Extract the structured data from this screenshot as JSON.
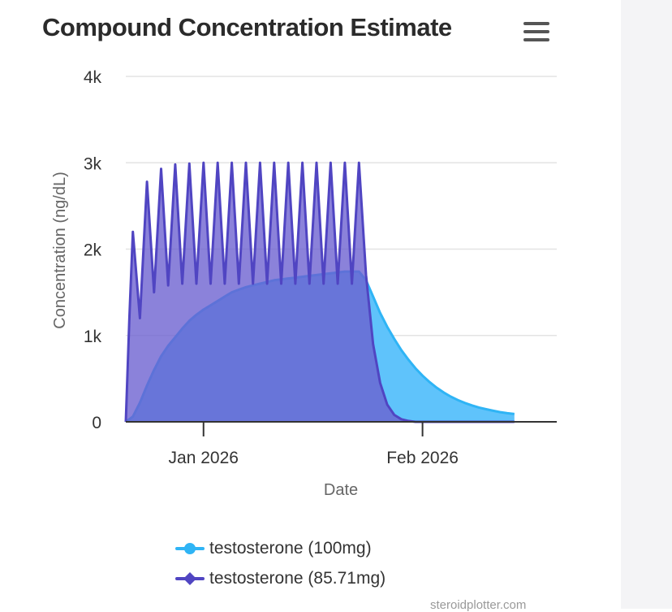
{
  "title": "Compound Concentration Estimate",
  "menu_icon": "hamburger-menu-icon",
  "credit": "steroidplotter.com",
  "chart_data": {
    "type": "area",
    "title": "Compound Concentration Estimate",
    "xlabel": "Date",
    "ylabel": "Concentration (ng/dL)",
    "x_ticks": [
      {
        "value": "2026-01-01",
        "label": "Jan 2026"
      },
      {
        "value": "2026-02-01",
        "label": "Feb 2026"
      }
    ],
    "xlim": [
      "2025-12-21",
      "2026-02-20"
    ],
    "ylim": [
      0,
      4000
    ],
    "y_ticks": [
      {
        "value": 0,
        "label": "0"
      },
      {
        "value": 1000,
        "label": "1k"
      },
      {
        "value": 2000,
        "label": "2k"
      },
      {
        "value": 3000,
        "label": "3k"
      },
      {
        "value": 4000,
        "label": "4k"
      }
    ],
    "grid": true,
    "legend_position": "bottom",
    "series": [
      {
        "name": "testosterone (100mg)",
        "color": "#2fb4f5",
        "fill": "#5fc3fb",
        "points": [
          [
            "2025-12-21",
            0
          ],
          [
            "2025-12-22",
            60
          ],
          [
            "2025-12-23",
            220
          ],
          [
            "2025-12-24",
            420
          ],
          [
            "2025-12-25",
            600
          ],
          [
            "2025-12-26",
            760
          ],
          [
            "2025-12-27",
            880
          ],
          [
            "2025-12-28",
            980
          ],
          [
            "2025-12-29",
            1080
          ],
          [
            "2025-12-30",
            1170
          ],
          [
            "2025-12-31",
            1240
          ],
          [
            "2026-01-01",
            1300
          ],
          [
            "2026-01-02",
            1350
          ],
          [
            "2026-01-03",
            1400
          ],
          [
            "2026-01-04",
            1450
          ],
          [
            "2026-01-05",
            1500
          ],
          [
            "2026-01-06",
            1530
          ],
          [
            "2026-01-07",
            1560
          ],
          [
            "2026-01-08",
            1580
          ],
          [
            "2026-01-09",
            1600
          ],
          [
            "2026-01-10",
            1620
          ],
          [
            "2026-01-11",
            1640
          ],
          [
            "2026-01-12",
            1650
          ],
          [
            "2026-01-13",
            1660
          ],
          [
            "2026-01-14",
            1670
          ],
          [
            "2026-01-15",
            1680
          ],
          [
            "2026-01-16",
            1690
          ],
          [
            "2026-01-17",
            1700
          ],
          [
            "2026-01-18",
            1710
          ],
          [
            "2026-01-19",
            1720
          ],
          [
            "2026-01-20",
            1730
          ],
          [
            "2026-01-21",
            1740
          ],
          [
            "2026-01-22",
            1740
          ],
          [
            "2026-01-23",
            1740
          ],
          [
            "2026-01-24",
            1640
          ],
          [
            "2026-01-25",
            1450
          ],
          [
            "2026-01-26",
            1260
          ],
          [
            "2026-01-27",
            1100
          ],
          [
            "2026-01-28",
            960
          ],
          [
            "2026-01-29",
            830
          ],
          [
            "2026-01-30",
            720
          ],
          [
            "2026-01-31",
            620
          ],
          [
            "2026-02-01",
            535
          ],
          [
            "2026-02-02",
            460
          ],
          [
            "2026-02-03",
            395
          ],
          [
            "2026-02-04",
            340
          ],
          [
            "2026-02-05",
            292
          ],
          [
            "2026-02-06",
            252
          ],
          [
            "2026-02-07",
            218
          ],
          [
            "2026-02-08",
            190
          ],
          [
            "2026-02-09",
            166
          ],
          [
            "2026-02-10",
            146
          ],
          [
            "2026-02-11",
            128
          ],
          [
            "2026-02-12",
            112
          ],
          [
            "2026-02-13",
            100
          ],
          [
            "2026-02-14",
            90
          ]
        ]
      },
      {
        "name": "testosterone (85.71mg)",
        "color": "#5045c2",
        "fill": "#6a5fd0",
        "points": [
          [
            "2025-12-21",
            0
          ],
          [
            "2025-12-21 12:00",
            1200
          ],
          [
            "2025-12-22",
            2200
          ],
          [
            "2025-12-23",
            1200
          ],
          [
            "2025-12-24",
            2780
          ],
          [
            "2025-12-25",
            1500
          ],
          [
            "2025-12-26",
            2930
          ],
          [
            "2025-12-27",
            1580
          ],
          [
            "2025-12-28",
            2980
          ],
          [
            "2025-12-29",
            1600
          ],
          [
            "2025-12-30",
            2990
          ],
          [
            "2025-12-31",
            1600
          ],
          [
            "2026-01-01",
            3000
          ],
          [
            "2026-01-02",
            1600
          ],
          [
            "2026-01-03",
            3000
          ],
          [
            "2026-01-04",
            1600
          ],
          [
            "2026-01-05",
            3000
          ],
          [
            "2026-01-06",
            1600
          ],
          [
            "2026-01-07",
            3000
          ],
          [
            "2026-01-08",
            1600
          ],
          [
            "2026-01-09",
            3000
          ],
          [
            "2026-01-10",
            1600
          ],
          [
            "2026-01-11",
            3000
          ],
          [
            "2026-01-12",
            1600
          ],
          [
            "2026-01-13",
            3000
          ],
          [
            "2026-01-14",
            1600
          ],
          [
            "2026-01-15",
            3000
          ],
          [
            "2026-01-16",
            1600
          ],
          [
            "2026-01-17",
            3000
          ],
          [
            "2026-01-18",
            1600
          ],
          [
            "2026-01-19",
            3000
          ],
          [
            "2026-01-20",
            1600
          ],
          [
            "2026-01-21",
            3000
          ],
          [
            "2026-01-22",
            1600
          ],
          [
            "2026-01-23",
            3000
          ],
          [
            "2026-01-24",
            1700
          ],
          [
            "2026-01-25",
            900
          ],
          [
            "2026-01-26",
            450
          ],
          [
            "2026-01-27",
            200
          ],
          [
            "2026-01-28",
            80
          ],
          [
            "2026-01-29",
            30
          ],
          [
            "2026-01-30",
            10
          ],
          [
            "2026-01-31",
            0
          ],
          [
            "2026-02-14",
            0
          ]
        ]
      }
    ]
  },
  "legend": [
    {
      "label": "testosterone (100mg)",
      "marker": "circle",
      "color": "#2fb4f5"
    },
    {
      "label": "testosterone (85.71mg)",
      "marker": "diamond",
      "color": "#5045c2"
    }
  ]
}
